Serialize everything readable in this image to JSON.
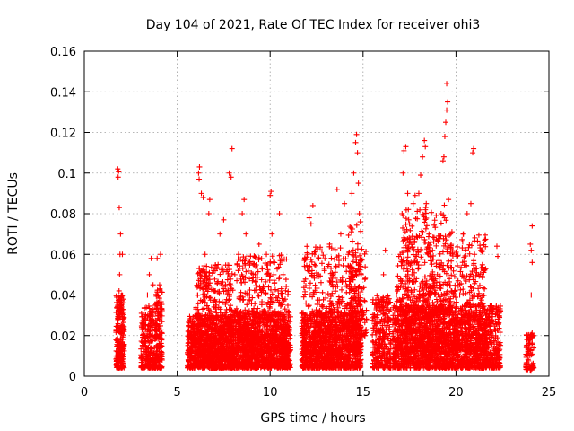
{
  "chart_data": {
    "type": "scatter",
    "title": "Day 104 of 2021, Rate Of TEC Index for receiver ohi3",
    "xlabel": "GPS time / hours",
    "ylabel": "ROTI / TECUs",
    "xlim": [
      0,
      25
    ],
    "ylim": [
      0,
      0.16
    ],
    "xticks": [
      0,
      5,
      10,
      15,
      20,
      25
    ],
    "yticks": [
      0,
      0.02,
      0.04,
      0.06,
      0.08,
      0.1,
      0.12,
      0.14,
      0.16
    ],
    "xtick_labels": [
      "0",
      "5",
      "10",
      "15",
      "20",
      "25"
    ],
    "ytick_labels": [
      "0",
      "0.02",
      "0.04",
      "0.06",
      "0.08",
      "0.1",
      "0.12",
      "0.14",
      "0.16"
    ],
    "grid": true,
    "marker": "plus",
    "color": "#ff0000",
    "series": [
      {
        "points": [
          [
            1.75,
            0.005
          ],
          [
            1.78,
            0.012
          ],
          [
            1.8,
            0.018
          ],
          [
            1.82,
            0.025
          ],
          [
            1.85,
            0.032
          ],
          [
            1.87,
            0.042
          ],
          [
            1.9,
            0.05
          ],
          [
            1.92,
            0.06
          ],
          [
            1.95,
            0.07
          ],
          [
            1.88,
            0.083
          ],
          [
            1.82,
            0.098
          ],
          [
            1.8,
            0.102
          ],
          [
            1.85,
            0.101
          ],
          [
            1.9,
            0.015
          ],
          [
            1.95,
            0.008
          ],
          [
            2.0,
            0.022
          ],
          [
            2.02,
            0.04
          ],
          [
            2.05,
            0.06
          ],
          [
            1.97,
            0.035
          ],
          [
            1.93,
            0.009
          ],
          [
            3.1,
            0.01
          ],
          [
            3.2,
            0.02
          ],
          [
            3.3,
            0.03
          ],
          [
            3.4,
            0.04
          ],
          [
            3.5,
            0.05
          ],
          [
            3.6,
            0.058
          ],
          [
            3.3,
            0.015
          ],
          [
            3.45,
            0.025
          ],
          [
            3.55,
            0.012
          ],
          [
            3.7,
            0.045
          ],
          [
            3.75,
            0.008
          ],
          [
            3.9,
            0.01
          ],
          [
            3.95,
            0.02
          ],
          [
            4.0,
            0.03
          ],
          [
            4.05,
            0.045
          ],
          [
            4.1,
            0.06
          ],
          [
            3.92,
            0.058
          ],
          [
            4.02,
            0.012
          ],
          [
            5.6,
            0.008
          ],
          [
            5.8,
            0.015
          ],
          [
            5.9,
            0.025
          ],
          [
            6.0,
            0.03
          ],
          [
            6.1,
            0.04
          ],
          [
            6.15,
            0.1
          ],
          [
            6.2,
            0.103
          ],
          [
            6.18,
            0.097
          ],
          [
            6.3,
            0.09
          ],
          [
            6.4,
            0.088
          ],
          [
            6.5,
            0.06
          ],
          [
            6.6,
            0.045
          ],
          [
            6.7,
            0.08
          ],
          [
            6.75,
            0.087
          ],
          [
            7.0,
            0.015
          ],
          [
            7.1,
            0.035
          ],
          [
            7.2,
            0.055
          ],
          [
            7.3,
            0.07
          ],
          [
            7.5,
            0.077
          ],
          [
            7.6,
            0.045
          ],
          [
            7.8,
            0.1
          ],
          [
            7.9,
            0.098
          ],
          [
            7.95,
            0.112
          ],
          [
            8.0,
            0.03
          ],
          [
            8.1,
            0.05
          ],
          [
            8.3,
            0.06
          ],
          [
            8.5,
            0.08
          ],
          [
            8.6,
            0.087
          ],
          [
            8.7,
            0.07
          ],
          [
            8.8,
            0.04
          ],
          [
            9.0,
            0.02
          ],
          [
            9.2,
            0.05
          ],
          [
            9.4,
            0.065
          ],
          [
            9.6,
            0.03
          ],
          [
            9.8,
            0.06
          ],
          [
            10.0,
            0.089
          ],
          [
            10.05,
            0.091
          ],
          [
            10.1,
            0.07
          ],
          [
            10.2,
            0.05
          ],
          [
            10.3,
            0.025
          ],
          [
            10.5,
            0.08
          ],
          [
            10.6,
            0.04
          ],
          [
            10.8,
            0.02
          ],
          [
            11.0,
            0.032
          ],
          [
            11.8,
            0.01
          ],
          [
            11.9,
            0.03
          ],
          [
            12.0,
            0.06
          ],
          [
            12.1,
            0.078
          ],
          [
            12.2,
            0.075
          ],
          [
            12.3,
            0.084
          ],
          [
            12.4,
            0.06
          ],
          [
            12.6,
            0.05
          ],
          [
            12.8,
            0.035
          ],
          [
            13.0,
            0.04
          ],
          [
            13.2,
            0.065
          ],
          [
            13.4,
            0.05
          ],
          [
            13.6,
            0.092
          ],
          [
            13.8,
            0.07
          ],
          [
            14.0,
            0.085
          ],
          [
            14.2,
            0.06
          ],
          [
            14.4,
            0.09
          ],
          [
            14.5,
            0.1
          ],
          [
            14.6,
            0.115
          ],
          [
            14.65,
            0.119
          ],
          [
            14.7,
            0.11
          ],
          [
            14.75,
            0.095
          ],
          [
            14.8,
            0.08
          ],
          [
            14.85,
            0.076
          ],
          [
            14.9,
            0.05
          ],
          [
            15.0,
            0.03
          ],
          [
            15.1,
            0.02
          ],
          [
            15.6,
            0.008
          ],
          [
            15.8,
            0.018
          ],
          [
            16.0,
            0.035
          ],
          [
            16.1,
            0.05
          ],
          [
            16.2,
            0.062
          ],
          [
            16.3,
            0.025
          ],
          [
            16.8,
            0.04
          ],
          [
            17.0,
            0.06
          ],
          [
            17.1,
            0.08
          ],
          [
            17.15,
            0.1
          ],
          [
            17.2,
            0.111
          ],
          [
            17.3,
            0.113
          ],
          [
            17.4,
            0.09
          ],
          [
            17.5,
            0.075
          ],
          [
            17.7,
            0.085
          ],
          [
            17.8,
            0.089
          ],
          [
            18.0,
            0.09
          ],
          [
            18.1,
            0.099
          ],
          [
            18.2,
            0.108
          ],
          [
            18.3,
            0.116
          ],
          [
            18.35,
            0.113
          ],
          [
            18.4,
            0.085
          ],
          [
            18.5,
            0.06
          ],
          [
            18.6,
            0.04
          ],
          [
            18.8,
            0.03
          ],
          [
            19.0,
            0.05
          ],
          [
            19.2,
            0.08
          ],
          [
            19.3,
            0.106
          ],
          [
            19.35,
            0.108
          ],
          [
            19.4,
            0.118
          ],
          [
            19.45,
            0.125
          ],
          [
            19.5,
            0.131
          ],
          [
            19.55,
            0.135
          ],
          [
            19.5,
            0.144
          ],
          [
            19.6,
            0.087
          ],
          [
            19.7,
            0.07
          ],
          [
            20.0,
            0.06
          ],
          [
            20.2,
            0.04
          ],
          [
            20.4,
            0.07
          ],
          [
            20.6,
            0.08
          ],
          [
            20.8,
            0.085
          ],
          [
            20.9,
            0.11
          ],
          [
            20.95,
            0.112
          ],
          [
            21.0,
            0.06
          ],
          [
            21.2,
            0.05
          ],
          [
            21.4,
            0.035
          ],
          [
            21.6,
            0.03
          ],
          [
            21.8,
            0.025
          ],
          [
            22.0,
            0.02
          ],
          [
            22.2,
            0.064
          ],
          [
            22.25,
            0.059
          ],
          [
            22.3,
            0.01
          ],
          [
            23.8,
            0.006
          ],
          [
            23.9,
            0.013
          ],
          [
            24.0,
            0.02
          ],
          [
            24.05,
            0.04
          ],
          [
            24.1,
            0.056
          ],
          [
            24.05,
            0.062
          ],
          [
            24.0,
            0.065
          ],
          [
            24.1,
            0.074
          ],
          [
            23.95,
            0.005
          ]
        ]
      }
    ],
    "dense_blocks": [
      {
        "x": [
          1.7,
          2.15
        ],
        "y": [
          0.004,
          0.04
        ],
        "n": 220
      },
      {
        "x": [
          3.05,
          3.9
        ],
        "y": [
          0.004,
          0.035
        ],
        "n": 260
      },
      {
        "x": [
          3.85,
          4.2
        ],
        "y": [
          0.004,
          0.045
        ],
        "n": 130
      },
      {
        "x": [
          5.55,
          8.0
        ],
        "y": [
          0.004,
          0.03
        ],
        "n": 900
      },
      {
        "x": [
          6.0,
          8.0
        ],
        "y": [
          0.01,
          0.055
        ],
        "n": 380
      },
      {
        "x": [
          8.0,
          11.1
        ],
        "y": [
          0.004,
          0.032
        ],
        "n": 1100
      },
      {
        "x": [
          8.2,
          11.0
        ],
        "y": [
          0.012,
          0.06
        ],
        "n": 420
      },
      {
        "x": [
          11.7,
          14.9
        ],
        "y": [
          0.004,
          0.032
        ],
        "n": 1100
      },
      {
        "x": [
          11.8,
          14.9
        ],
        "y": [
          0.012,
          0.065
        ],
        "n": 420
      },
      {
        "x": [
          14.2,
          15.2
        ],
        "y": [
          0.02,
          0.075
        ],
        "n": 130
      },
      {
        "x": [
          15.5,
          16.5
        ],
        "y": [
          0.004,
          0.04
        ],
        "n": 280
      },
      {
        "x": [
          16.6,
          22.4
        ],
        "y": [
          0.004,
          0.035
        ],
        "n": 1800
      },
      {
        "x": [
          16.8,
          21.6
        ],
        "y": [
          0.012,
          0.07
        ],
        "n": 800
      },
      {
        "x": [
          17.0,
          19.8
        ],
        "y": [
          0.03,
          0.085
        ],
        "n": 220
      },
      {
        "x": [
          23.75,
          24.2
        ],
        "y": [
          0.003,
          0.022
        ],
        "n": 70
      }
    ]
  }
}
